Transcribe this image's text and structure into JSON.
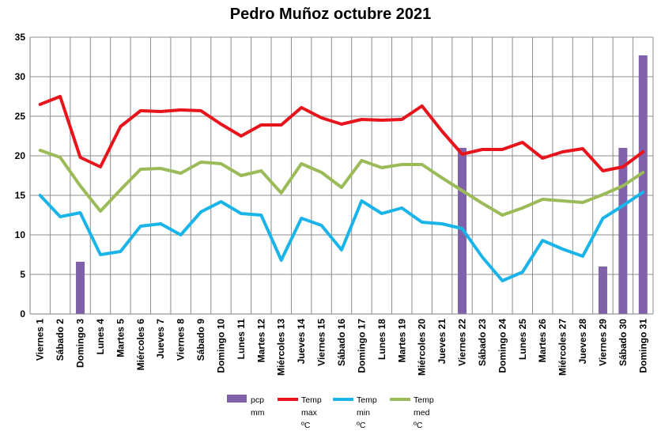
{
  "chart_data": {
    "type": "bar+line",
    "title": "Pedro Muñoz octubre 2021",
    "xlabel": "",
    "ylabel": "",
    "ylim": [
      0,
      35
    ],
    "yticks": [
      0,
      5,
      10,
      15,
      20,
      25,
      30,
      35
    ],
    "grid": true,
    "legend_position": "bottom",
    "categories": [
      "Viernes 1",
      "Sábado 2",
      "Domingo 3",
      "Lunes 4",
      "Martes 5",
      "Miércoles 6",
      "Jueves 7",
      "Viernes 8",
      "Sábado 9",
      "Domingo 10",
      "Lunes 11",
      "Martes 12",
      "Miércoles 13",
      "Jueves 14",
      "Viernes 15",
      "Sábado 16",
      "Domingo 17",
      "Lunes 18",
      "Martes 19",
      "Miércoles 20",
      "Jueves 21",
      "Viernes 22",
      "Sábado 23",
      "Domingo 24",
      "Lunes 25",
      "Martes 26",
      "Miércoles 27",
      "Jueves 28",
      "Viernes 29",
      "Sábado 30",
      "Domingo 31"
    ],
    "series": [
      {
        "name": "pcp mm",
        "legend_lines": [
          "pcp",
          "mm"
        ],
        "kind": "bar",
        "color": "#7f62a9",
        "values": [
          0,
          0,
          6.6,
          0,
          0,
          0,
          0,
          0,
          0,
          0,
          0,
          0,
          0,
          0,
          0,
          0,
          0,
          0,
          0,
          0,
          0,
          21.0,
          0,
          0,
          0,
          0,
          0,
          0,
          6.0,
          21.0,
          32.7
        ]
      },
      {
        "name": "Temp max ºC",
        "legend_lines": [
          "Temp",
          "max",
          "ºC"
        ],
        "kind": "line",
        "color": "#e8141b",
        "values": [
          26.5,
          27.5,
          19.8,
          18.6,
          23.7,
          25.7,
          25.6,
          25.8,
          25.7,
          24.0,
          22.5,
          23.9,
          23.9,
          26.1,
          24.8,
          24.0,
          24.6,
          24.5,
          24.6,
          26.3,
          23.1,
          20.2,
          20.8,
          20.8,
          21.7,
          19.7,
          20.5,
          20.9,
          18.1,
          18.6,
          20.5
        ]
      },
      {
        "name": "Temp min ºC",
        "legend_lines": [
          "Temp",
          "min",
          "ºC"
        ],
        "kind": "line",
        "color": "#1ab4e8",
        "values": [
          15.0,
          12.3,
          12.8,
          7.5,
          7.9,
          11.1,
          11.4,
          10.0,
          12.9,
          14.2,
          12.7,
          12.5,
          6.8,
          12.1,
          11.2,
          8.1,
          14.3,
          12.7,
          13.4,
          11.6,
          11.4,
          10.8,
          7.2,
          4.2,
          5.3,
          9.3,
          8.2,
          7.3,
          12.1,
          13.7,
          15.4
        ]
      },
      {
        "name": "Temp med ºC",
        "legend_lines": [
          "Temp",
          "med",
          "ºC"
        ],
        "kind": "line",
        "color": "#9bbb59",
        "values": [
          20.7,
          19.8,
          16.2,
          13.0,
          15.7,
          18.3,
          18.4,
          17.8,
          19.2,
          19.0,
          17.5,
          18.1,
          15.3,
          19.0,
          17.9,
          16.0,
          19.4,
          18.5,
          18.9,
          18.9,
          17.2,
          15.6,
          14.0,
          12.5,
          13.4,
          14.5,
          14.3,
          14.1,
          15.1,
          16.2,
          17.9
        ]
      }
    ]
  }
}
